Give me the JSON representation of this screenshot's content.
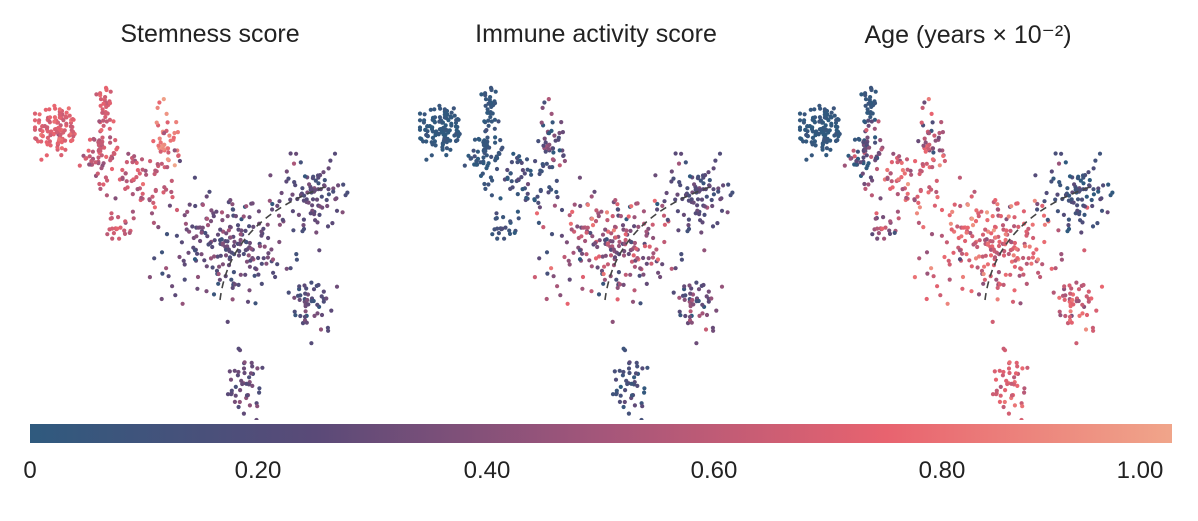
{
  "chart_data": [
    {
      "type": "scatter",
      "title": "Stemness score",
      "colorscale": [
        "#2f5a7e",
        "#5a4a78",
        "#a4567a",
        "#e8636f",
        "#f0a58a"
      ],
      "clusters": [
        {
          "center": [
            0.06,
            0.83
          ],
          "spread": [
            0.035,
            0.04
          ],
          "n": 110,
          "value_mean": 0.72,
          "value_sd": 0.06
        },
        {
          "center": [
            0.2,
            0.9
          ],
          "spread": [
            0.01,
            0.03
          ],
          "n": 30,
          "value_mean": 0.7,
          "value_sd": 0.05
        },
        {
          "center": [
            0.19,
            0.76
          ],
          "spread": [
            0.025,
            0.04
          ],
          "n": 65,
          "value_mean": 0.62,
          "value_sd": 0.08
        },
        {
          "center": [
            0.38,
            0.82
          ],
          "spread": [
            0.02,
            0.05
          ],
          "n": 35,
          "value_mean": 0.82,
          "value_sd": 0.08
        },
        {
          "center": [
            0.3,
            0.68
          ],
          "spread": [
            0.05,
            0.05
          ],
          "n": 70,
          "value_mean": 0.6,
          "value_sd": 0.08
        },
        {
          "center": [
            0.24,
            0.54
          ],
          "spread": [
            0.03,
            0.02
          ],
          "n": 18,
          "value_mean": 0.65,
          "value_sd": 0.06
        },
        {
          "center": [
            0.55,
            0.5
          ],
          "spread": [
            0.09,
            0.08
          ],
          "n": 220,
          "value_mean": 0.28,
          "value_sd": 0.1
        },
        {
          "center": [
            0.8,
            0.65
          ],
          "spread": [
            0.05,
            0.05
          ],
          "n": 90,
          "value_mean": 0.25,
          "value_sd": 0.08
        },
        {
          "center": [
            0.78,
            0.33
          ],
          "spread": [
            0.04,
            0.04
          ],
          "n": 50,
          "value_mean": 0.25,
          "value_sd": 0.08
        },
        {
          "center": [
            0.6,
            0.1
          ],
          "spread": [
            0.03,
            0.05
          ],
          "n": 45,
          "value_mean": 0.3,
          "value_sd": 0.08
        }
      ]
    },
    {
      "type": "scatter",
      "title": "Immune activity score",
      "colorscale": [
        "#2f5a7e",
        "#5a4a78",
        "#a4567a",
        "#e8636f",
        "#f0a58a"
      ],
      "clusters": [
        {
          "center": [
            0.06,
            0.83
          ],
          "spread": [
            0.035,
            0.04
          ],
          "n": 110,
          "value_mean": 0.03,
          "value_sd": 0.03
        },
        {
          "center": [
            0.2,
            0.9
          ],
          "spread": [
            0.01,
            0.03
          ],
          "n": 30,
          "value_mean": 0.05,
          "value_sd": 0.03
        },
        {
          "center": [
            0.19,
            0.76
          ],
          "spread": [
            0.025,
            0.04
          ],
          "n": 65,
          "value_mean": 0.05,
          "value_sd": 0.04
        },
        {
          "center": [
            0.38,
            0.82
          ],
          "spread": [
            0.02,
            0.05
          ],
          "n": 35,
          "value_mean": 0.25,
          "value_sd": 0.15
        },
        {
          "center": [
            0.3,
            0.68
          ],
          "spread": [
            0.05,
            0.05
          ],
          "n": 70,
          "value_mean": 0.12,
          "value_sd": 0.08
        },
        {
          "center": [
            0.24,
            0.54
          ],
          "spread": [
            0.03,
            0.02
          ],
          "n": 18,
          "value_mean": 0.1,
          "value_sd": 0.06
        },
        {
          "center": [
            0.55,
            0.5
          ],
          "spread": [
            0.09,
            0.08
          ],
          "n": 220,
          "value_mean": 0.45,
          "value_sd": 0.18
        },
        {
          "center": [
            0.8,
            0.65
          ],
          "spread": [
            0.05,
            0.05
          ],
          "n": 90,
          "value_mean": 0.22,
          "value_sd": 0.08
        },
        {
          "center": [
            0.78,
            0.33
          ],
          "spread": [
            0.04,
            0.04
          ],
          "n": 50,
          "value_mean": 0.35,
          "value_sd": 0.12
        },
        {
          "center": [
            0.6,
            0.1
          ],
          "spread": [
            0.03,
            0.05
          ],
          "n": 45,
          "value_mean": 0.15,
          "value_sd": 0.08
        }
      ]
    },
    {
      "type": "scatter",
      "title": "Age (years × 10⁻²)",
      "colorscale": [
        "#2f5a7e",
        "#5a4a78",
        "#a4567a",
        "#e8636f",
        "#f0a58a"
      ],
      "clusters": [
        {
          "center": [
            0.06,
            0.83
          ],
          "spread": [
            0.035,
            0.04
          ],
          "n": 110,
          "value_mean": 0.03,
          "value_sd": 0.03
        },
        {
          "center": [
            0.2,
            0.9
          ],
          "spread": [
            0.01,
            0.03
          ],
          "n": 30,
          "value_mean": 0.05,
          "value_sd": 0.03
        },
        {
          "center": [
            0.19,
            0.76
          ],
          "spread": [
            0.025,
            0.04
          ],
          "n": 65,
          "value_mean": 0.25,
          "value_sd": 0.2
        },
        {
          "center": [
            0.38,
            0.82
          ],
          "spread": [
            0.02,
            0.05
          ],
          "n": 35,
          "value_mean": 0.45,
          "value_sd": 0.2
        },
        {
          "center": [
            0.3,
            0.68
          ],
          "spread": [
            0.05,
            0.05
          ],
          "n": 70,
          "value_mean": 0.65,
          "value_sd": 0.12
        },
        {
          "center": [
            0.24,
            0.54
          ],
          "spread": [
            0.03,
            0.02
          ],
          "n": 18,
          "value_mean": 0.45,
          "value_sd": 0.2
        },
        {
          "center": [
            0.55,
            0.5
          ],
          "spread": [
            0.09,
            0.08
          ],
          "n": 220,
          "value_mean": 0.68,
          "value_sd": 0.12
        },
        {
          "center": [
            0.8,
            0.65
          ],
          "spread": [
            0.05,
            0.05
          ],
          "n": 90,
          "value_mean": 0.12,
          "value_sd": 0.1
        },
        {
          "center": [
            0.78,
            0.33
          ],
          "spread": [
            0.04,
            0.04
          ],
          "n": 50,
          "value_mean": 0.68,
          "value_sd": 0.1
        },
        {
          "center": [
            0.6,
            0.1
          ],
          "spread": [
            0.03,
            0.05
          ],
          "n": 45,
          "value_mean": 0.7,
          "value_sd": 0.08
        }
      ]
    }
  ],
  "colorbar": {
    "ticks": [
      "0",
      "0.20",
      "0.40",
      "0.60",
      "0.80",
      "1.00"
    ],
    "tick_values": [
      0,
      0.2,
      0.4,
      0.6,
      0.8,
      1.0
    ],
    "range": [
      0,
      1
    ],
    "colors": [
      "#2f5a7e",
      "#5a4a78",
      "#a4567a",
      "#e8636f",
      "#f0a58a"
    ]
  },
  "dashed_arc_color": "#444444"
}
